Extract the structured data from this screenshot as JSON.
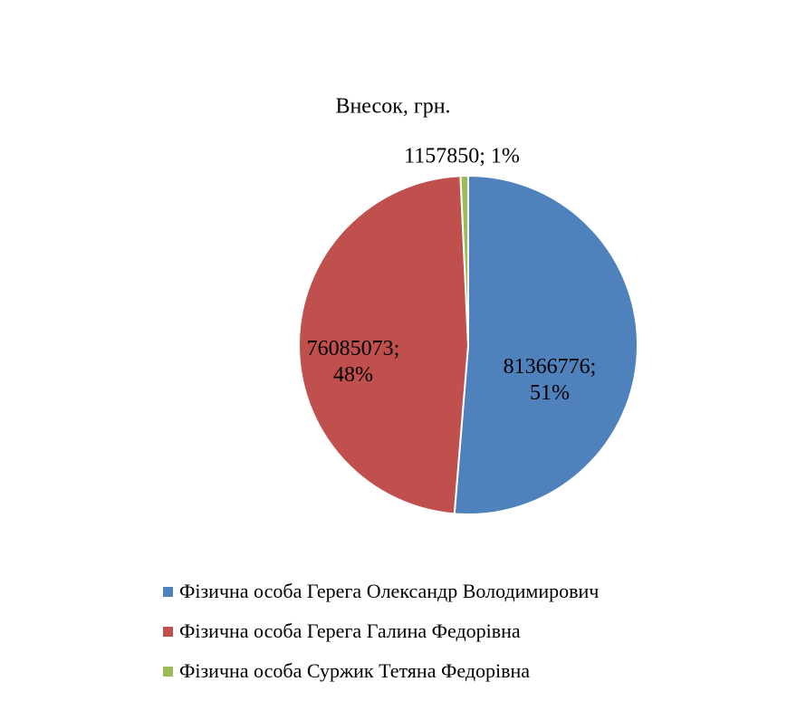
{
  "chart_data": {
    "type": "pie",
    "title": "Внесок, грн.",
    "categories": [
      "Фізична особа Герега Олександр Володимирович",
      "Фізична особа Герега Галина Федорівна",
      "Фізична особа Суржик Тетяна Федорівна"
    ],
    "values": [
      81366776,
      76085073,
      1157850
    ],
    "value_labels": [
      "81366776; 51%",
      "76085073; 48%",
      "1157850; 1%"
    ],
    "colors": [
      "#4f81bd",
      "#c0504d",
      "#9bbb59"
    ],
    "legend": "bottom"
  }
}
